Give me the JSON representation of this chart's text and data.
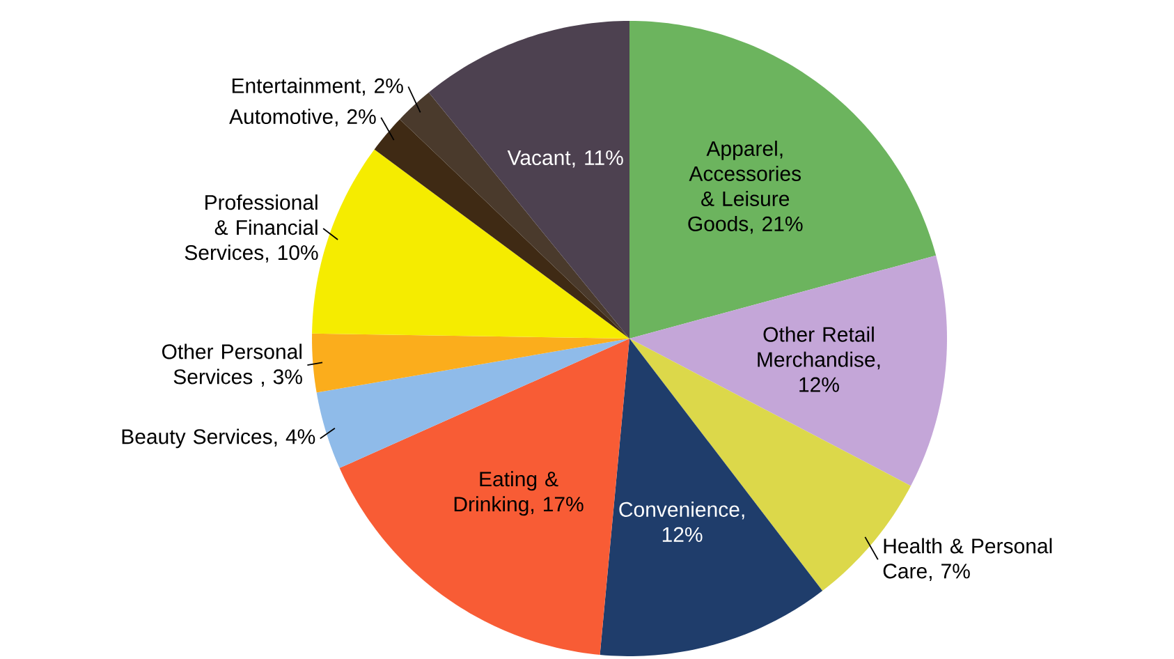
{
  "chart_data": {
    "type": "pie",
    "categories": [
      "Apparel, Accessories & Leisure Goods, 21%",
      "Other Retail Merchandise, 12%",
      "Health & Personal Care, 7%",
      "Convenience, 12%",
      "Eating & Drinking, 17%",
      "Beauty Services, 4%",
      "Other Personal Services , 3%",
      "Professional & Financial Services, 10%",
      "Automotive, 2%",
      "Entertainment, 2%",
      "Vacant, 11%"
    ],
    "values": [
      21,
      12,
      7,
      12,
      17,
      4,
      3,
      10,
      2,
      2,
      11
    ],
    "colors": [
      "#6cb45e",
      "#c4a6d8",
      "#dcd84a",
      "#1f3d6b",
      "#f85c35",
      "#8fbbe9",
      "#fbad1c",
      "#f5ec00",
      "#3f2a14",
      "#4a3a2c",
      "#4d4150"
    ]
  }
}
